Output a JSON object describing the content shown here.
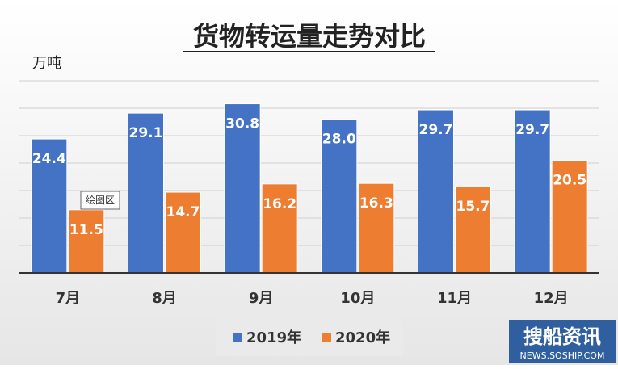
{
  "chart_data": {
    "type": "bar",
    "title": "货物转运量走势对比",
    "ylabel": "万吨",
    "xlabel": "",
    "categories": [
      "7月",
      "8月",
      "9月",
      "10月",
      "11月",
      "12月"
    ],
    "ylim": [
      0,
      35
    ],
    "grid": true,
    "legend_position": "bottom",
    "series": [
      {
        "name": "2019年",
        "color": "#4472C4",
        "values": [
          24.4,
          29.1,
          30.8,
          28.0,
          29.7,
          29.7
        ]
      },
      {
        "name": "2020年",
        "color": "#ED7D31",
        "values": [
          11.5,
          14.7,
          16.2,
          16.3,
          15.7,
          20.5
        ]
      }
    ]
  },
  "tooltip": {
    "text": "绘图区"
  },
  "watermark": {
    "brand": "搜船资讯",
    "url": "NEWS.SOSHIP.COM"
  }
}
